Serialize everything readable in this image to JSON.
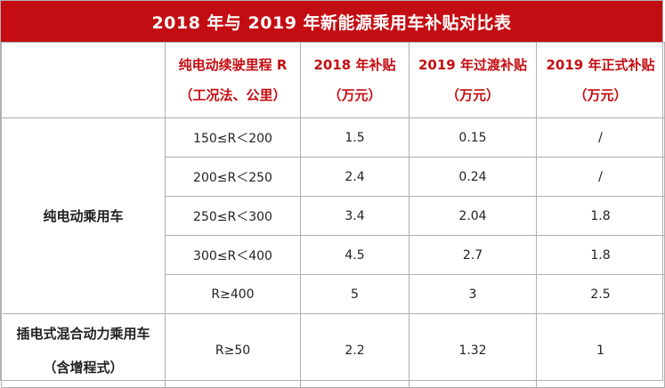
{
  "title": "2018 年与 2019 年新能源乘用车补贴对比表",
  "header": {
    "col1_line1": "纯电动续驶里程 R",
    "col1_line2": "（工况法、公里）",
    "col2_line1": "2018 年补贴",
    "col2_line2": "（万元）",
    "col3_line1": "2019 年过渡补贴",
    "col3_line2": "（万元）",
    "col4_line1": "2019 年正式补贴",
    "col4_line2": "（万元）"
  },
  "groups": [
    {
      "category": "纯电动乘用车",
      "rows": [
        {
          "range": "150≤R＜200",
          "s2018": "1.5",
          "s2019_transition": "0.15",
          "s2019_formal": "/"
        },
        {
          "range": "200≤R＜250",
          "s2018": "2.4",
          "s2019_transition": "0.24",
          "s2019_formal": "/"
        },
        {
          "range": "250≤R＜300",
          "s2018": "3.4",
          "s2019_transition": "2.04",
          "s2019_formal": "1.8"
        },
        {
          "range": "300≤R＜400",
          "s2018": "4.5",
          "s2019_transition": "2.7",
          "s2019_formal": "1.8"
        },
        {
          "range": "R≥400",
          "s2018": "5",
          "s2019_transition": "3",
          "s2019_formal": "2.5"
        }
      ]
    },
    {
      "category_line1": "插电式混合动力乘用车",
      "category_line2": "（含增程式）",
      "rows": [
        {
          "range": "R≥50",
          "s2018": "2.2",
          "s2019_transition": "1.32",
          "s2019_formal": "1"
        }
      ]
    }
  ]
}
